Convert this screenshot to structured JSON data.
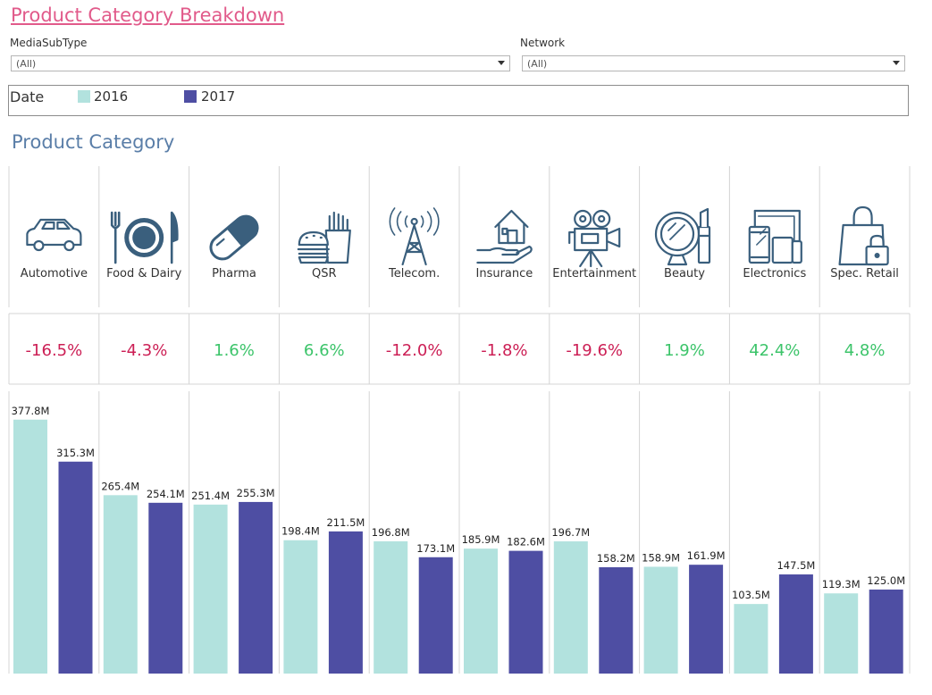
{
  "page": {
    "title": "Product Category Breakdown",
    "section_title": "Product Category"
  },
  "filters": [
    {
      "label": "MediaSubType",
      "value": "(All)"
    },
    {
      "label": "Network",
      "value": "(All)"
    }
  ],
  "legend": {
    "title": "Date",
    "items": [
      {
        "label": "2016",
        "color": "#b2e2de"
      },
      {
        "label": "2017",
        "color": "#4e4ea3"
      }
    ]
  },
  "colors": {
    "positive": "#3cc46a",
    "negative": "#cc1f55",
    "icon": "#3a5f7d",
    "grid": "#d4d4d4"
  },
  "chart_data": {
    "type": "bar",
    "categories": [
      "Automotive",
      "Food & Dairy",
      "Pharma",
      "QSR",
      "Telecom.",
      "Insurance",
      "Entertainment",
      "Beauty",
      "Electronics",
      "Spec. Retail"
    ],
    "icons": [
      "car-icon",
      "plate-icon",
      "pill-icon",
      "fastfood-icon",
      "tower-icon",
      "house-hand-icon",
      "camera-icon",
      "mirror-lipstick-icon",
      "devices-icon",
      "bag-lock-icon"
    ],
    "changes": [
      "-16.5%",
      "-4.3%",
      "1.6%",
      "6.6%",
      "-12.0%",
      "-1.8%",
      "-19.6%",
      "1.9%",
      "42.4%",
      "4.8%"
    ],
    "series": [
      {
        "name": "2016",
        "values": [
          377.8,
          265.4,
          251.4,
          198.4,
          196.8,
          185.9,
          196.7,
          158.9,
          103.5,
          119.3
        ],
        "labels": [
          "377.8M",
          "265.4M",
          "251.4M",
          "198.4M",
          "196.8M",
          "185.9M",
          "196.7M",
          "158.9M",
          "103.5M",
          "119.3M"
        ]
      },
      {
        "name": "2017",
        "values": [
          315.3,
          254.1,
          255.3,
          211.5,
          173.1,
          182.6,
          158.2,
          161.9,
          147.5,
          125.0
        ],
        "labels": [
          "315.3M",
          "254.1M",
          "255.3M",
          "211.5M",
          "173.1M",
          "182.6M",
          "158.2M",
          "161.9M",
          "147.5M",
          "125.0M"
        ]
      }
    ],
    "ylim": [
      0,
      420
    ],
    "grid": false
  }
}
